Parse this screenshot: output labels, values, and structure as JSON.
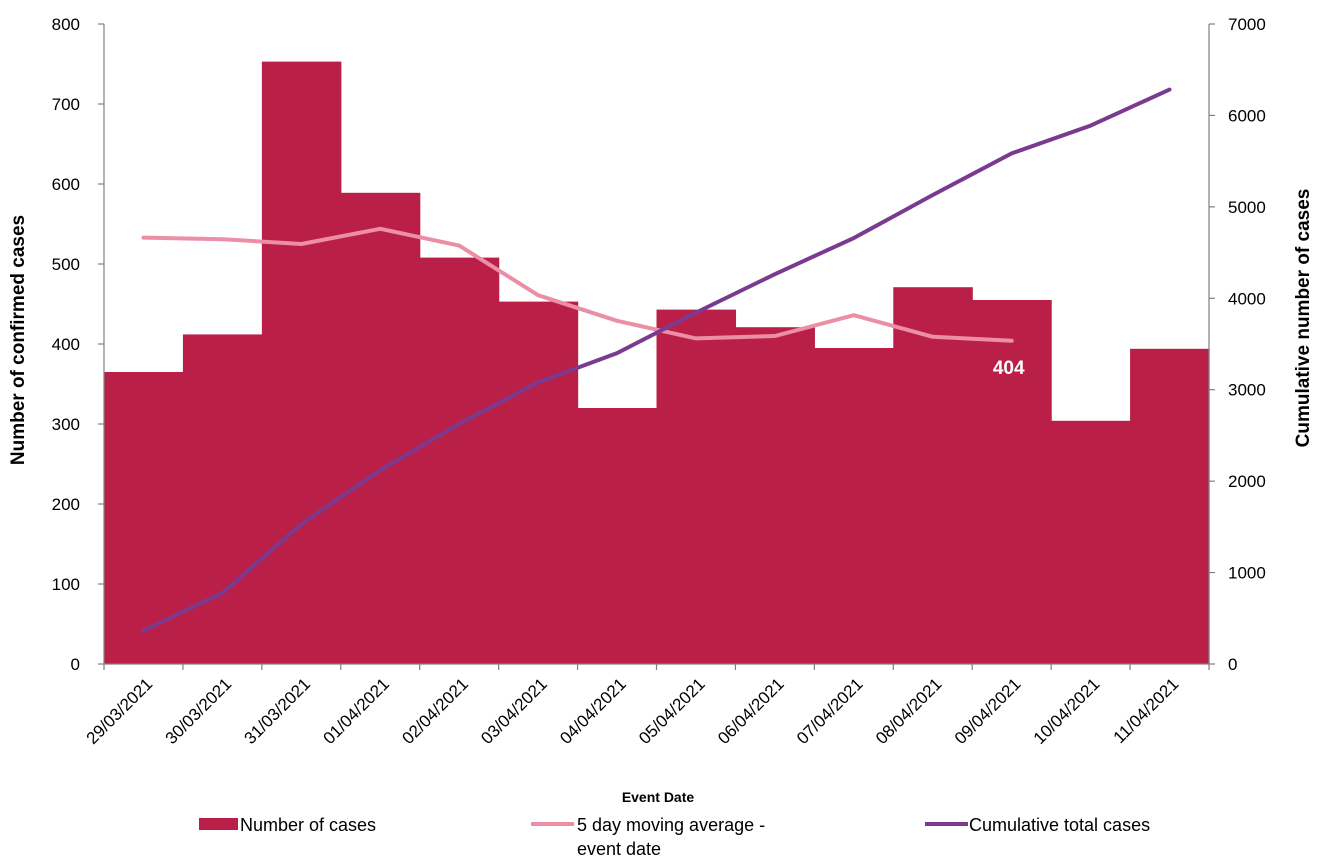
{
  "chart_data": {
    "type": "bar",
    "categories": [
      "29/03/2021",
      "30/03/2021",
      "31/03/2021",
      "01/04/2021",
      "02/04/2021",
      "03/04/2021",
      "04/04/2021",
      "05/04/2021",
      "06/04/2021",
      "07/04/2021",
      "08/04/2021",
      "09/04/2021",
      "10/04/2021",
      "11/04/2021"
    ],
    "series": [
      {
        "name": "Number of cases",
        "kind": "bar",
        "axis": "left",
        "values": [
          365,
          412,
          753,
          589,
          508,
          453,
          320,
          443,
          421,
          395,
          471,
          455,
          304,
          394
        ]
      },
      {
        "name": "5 day moving average - event date",
        "kind": "line",
        "axis": "left",
        "values": [
          533,
          531,
          525,
          544,
          523,
          461,
          429,
          407,
          410,
          436,
          409,
          404,
          null,
          null
        ]
      },
      {
        "name": "Cumulative total cases",
        "kind": "line",
        "axis": "right",
        "values": [
          365,
          777,
          1530,
          2119,
          2627,
          3080,
          3400,
          3843,
          4264,
          4659,
          5130,
          5585,
          5889,
          6283
        ]
      }
    ],
    "data_labels": [
      {
        "series": "5 day moving average - event date",
        "index": 11,
        "text": "404"
      }
    ],
    "xlabel": "Event Date",
    "ylabel": "Number of confirmed cases",
    "y2label": "Cumulative number of cases",
    "ylim": [
      0,
      800
    ],
    "y2lim": [
      0,
      7000
    ],
    "yticks": [
      "0",
      "100",
      "200",
      "300",
      "400",
      "500",
      "600",
      "700",
      "800"
    ],
    "y2ticks": [
      "0",
      "1000",
      "2000",
      "3000",
      "4000",
      "5000",
      "6000",
      "7000"
    ],
    "grid": false,
    "legend_position": "bottom",
    "legend": [
      {
        "label": "Number of cases",
        "type": "rect"
      },
      {
        "label_lines": [
          "5 day moving average -",
          "event date"
        ],
        "type": "line"
      },
      {
        "label": "Cumulative total cases",
        "type": "line"
      }
    ],
    "colors": {
      "bars": "#BA2047",
      "moving_average": "#EC8FA6",
      "cumulative": "#7A3A8F",
      "axis": "#808080"
    }
  }
}
